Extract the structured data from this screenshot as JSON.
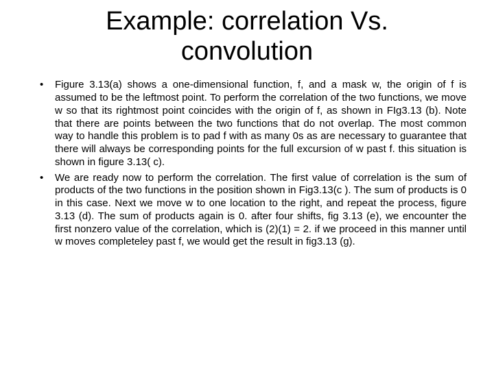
{
  "slide": {
    "title": "Example: correlation Vs. convolution",
    "title_fontsize": 38,
    "title_color": "#000000",
    "body_fontsize": 15,
    "body_color": "#000000",
    "background_color": "#ffffff",
    "bullets": [
      "Figure 3.13(a) shows a one-dimensional function, f, and a mask w, the origin of f is assumed to be the leftmost point. To perform the correlation of the two functions, we move w so that its rightmost point coincides with the origin of f, as shown in FIg3.13 (b). Note that there are points between the two functions that do not overlap. The most common way to handle this problem is to pad f with as many 0s as are necessary to guarantee that there will always be corresponding points for the full excursion of w past f. this situation is shown in figure 3.13( c).",
      "We are ready now to perform the correlation. The first value of correlation is the sum of products of the two functions in the position shown in Fig3.13(c ). The sum of products is 0 in this case. Next we move w to one location to the right, and repeat the process, figure 3.13 (d). The sum of products again is 0. after four shifts, fig 3.13 (e), we encounter the first nonzero value of the correlation, which is (2)(1) = 2. if we proceed  in this manner until w moves completeley past f, we would get the result in fig3.13 (g)."
    ]
  }
}
